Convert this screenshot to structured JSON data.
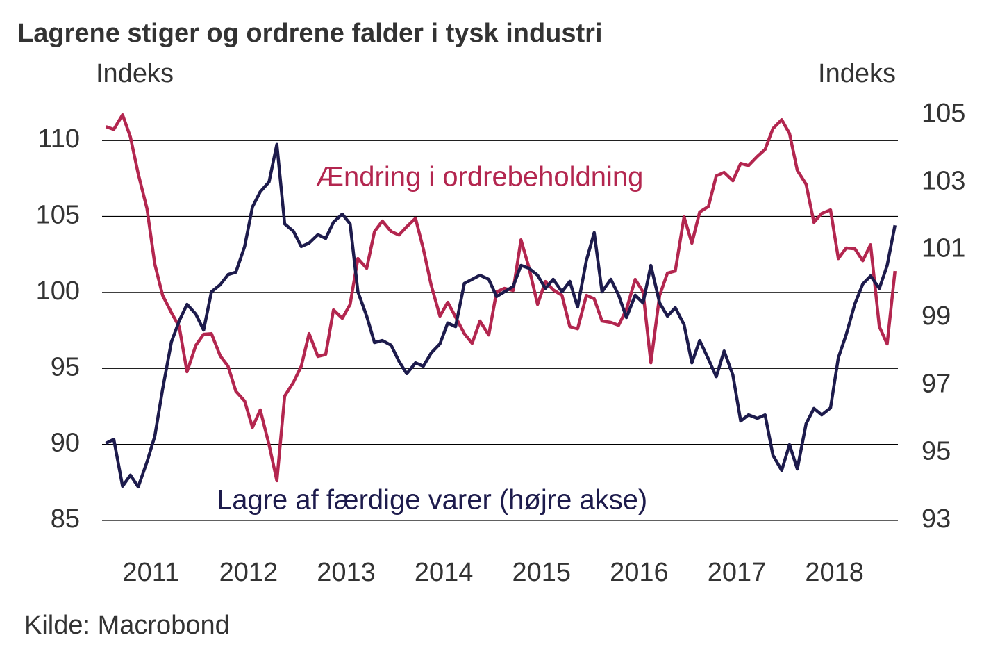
{
  "chart_data": {
    "type": "line",
    "title": "Lagrene stiger og ordrene falder i tysk industri",
    "y_label": "Indeks",
    "y2_label": "Indeks",
    "source": "Kilde: Macrobond",
    "x": [
      2011.04,
      2011.12,
      2011.21,
      2011.29,
      2011.37,
      2011.46,
      2011.54,
      2011.62,
      2011.71,
      2011.79,
      2011.87,
      2011.96,
      2012.04,
      2012.12,
      2012.21,
      2012.29,
      2012.37,
      2012.46,
      2012.54,
      2012.62,
      2012.71,
      2012.79,
      2012.87,
      2012.96,
      2013.04,
      2013.12,
      2013.21,
      2013.29,
      2013.37,
      2013.46,
      2013.54,
      2013.62,
      2013.71,
      2013.79,
      2013.87,
      2013.96,
      2014.04,
      2014.12,
      2014.21,
      2014.29,
      2014.37,
      2014.46,
      2014.54,
      2014.62,
      2014.71,
      2014.79,
      2014.87,
      2014.96,
      2015.04,
      2015.12,
      2015.21,
      2015.29,
      2015.37,
      2015.46,
      2015.54,
      2015.62,
      2015.71,
      2015.79,
      2015.87,
      2015.96,
      2016.04,
      2016.12,
      2016.21,
      2016.29,
      2016.37,
      2016.46,
      2016.54,
      2016.62,
      2016.71,
      2016.79,
      2016.87,
      2016.96,
      2017.04,
      2017.12,
      2017.21,
      2017.29,
      2017.37,
      2017.46,
      2017.54,
      2017.62,
      2017.71,
      2017.79,
      2017.87,
      2017.96,
      2018.04,
      2018.12,
      2018.21,
      2018.29,
      2018.37,
      2018.46,
      2018.54,
      2018.62,
      2018.71,
      2018.79,
      2018.87,
      2018.96,
      2019.04,
      2019.12
    ],
    "series": [
      {
        "name": "Ændring i ordrebeholdning",
        "color": "#b3264f",
        "values": [
          110.91,
          110.73,
          111.69,
          110.23,
          107.81,
          105.52,
          101.86,
          99.81,
          98.67,
          97.75,
          94.78,
          96.52,
          97.25,
          97.29,
          95.83,
          95.15,
          93.5,
          92.86,
          91.12,
          92.27,
          89.98,
          87.61,
          93.18,
          94.09,
          95.15,
          97.29,
          95.79,
          95.92,
          98.85,
          98.3,
          99.21,
          102.23,
          101.59,
          104.01,
          104.7,
          104.01,
          103.78,
          104.33,
          104.88,
          102.87,
          100.49,
          98.44,
          99.35,
          98.39,
          97.29,
          96.65,
          98.12,
          97.2,
          100.04,
          100.27,
          100.13,
          103.46,
          101.68,
          99.21,
          100.72,
          100.17,
          99.81,
          97.75,
          97.61,
          99.81,
          99.58,
          98.12,
          98.03,
          97.84,
          98.89,
          100.86,
          100.04,
          95.37,
          99.81,
          101.27,
          101.41,
          104.97,
          103.24,
          105.29,
          105.66,
          107.67,
          107.9,
          107.35,
          108.49,
          108.35,
          108.95,
          109.41,
          110.78,
          111.37,
          110.46,
          108.03,
          107.12,
          104.61,
          105.2,
          105.43,
          102.23,
          102.92,
          102.87,
          102.09,
          103.14,
          97.75,
          96.61,
          101.41
        ]
      },
      {
        "name": "Lagre af færdige varer (højre akse)",
        "color": "#1d1b4c",
        "axis": "y2",
        "values": [
          95.28,
          95.4,
          94.01,
          94.34,
          93.99,
          94.73,
          95.49,
          96.88,
          98.28,
          98.9,
          99.39,
          99.1,
          98.63,
          99.76,
          99.97,
          100.27,
          100.34,
          101.1,
          102.27,
          102.72,
          103.01,
          104.12,
          101.77,
          101.55,
          101.1,
          101.2,
          101.45,
          101.34,
          101.82,
          102.06,
          101.77,
          99.76,
          99.04,
          98.26,
          98.32,
          98.18,
          97.71,
          97.34,
          97.66,
          97.56,
          97.95,
          98.22,
          98.84,
          98.73,
          100.01,
          100.13,
          100.25,
          100.13,
          99.62,
          99.76,
          99.92,
          100.54,
          100.46,
          100.25,
          99.86,
          100.13,
          99.76,
          100.07,
          99.31,
          100.69,
          101.51,
          99.76,
          100.13,
          99.66,
          99.0,
          99.66,
          99.43,
          100.54,
          99.43,
          99.04,
          99.29,
          98.79,
          97.66,
          98.32,
          97.77,
          97.25,
          98.01,
          97.3,
          95.94,
          96.12,
          96.02,
          96.12,
          94.93,
          94.48,
          95.24,
          94.52,
          95.86,
          96.31,
          96.12,
          96.33,
          97.81,
          98.49,
          99.41,
          99.99,
          100.23,
          99.86,
          100.54,
          101.73
        ]
      }
    ],
    "xlim": [
      2011.0,
      2019.15
    ],
    "xticks": [
      {
        "value": 2011.5,
        "label": "2011"
      },
      {
        "value": 2012.5,
        "label": "2012"
      },
      {
        "value": 2013.5,
        "label": "2013"
      },
      {
        "value": 2014.5,
        "label": "2014"
      },
      {
        "value": 2015.5,
        "label": "2015"
      },
      {
        "value": 2016.5,
        "label": "2016"
      },
      {
        "value": 2017.5,
        "label": "2017"
      },
      {
        "value": 2018.5,
        "label": "2018"
      }
    ],
    "ylim": [
      85,
      111.7
    ],
    "yticks": [
      85,
      90,
      95,
      100,
      105,
      110
    ],
    "y2lim": [
      93,
      105
    ],
    "y2ticks": [
      93,
      95,
      97,
      99,
      101,
      103,
      105
    ],
    "grid": true
  }
}
